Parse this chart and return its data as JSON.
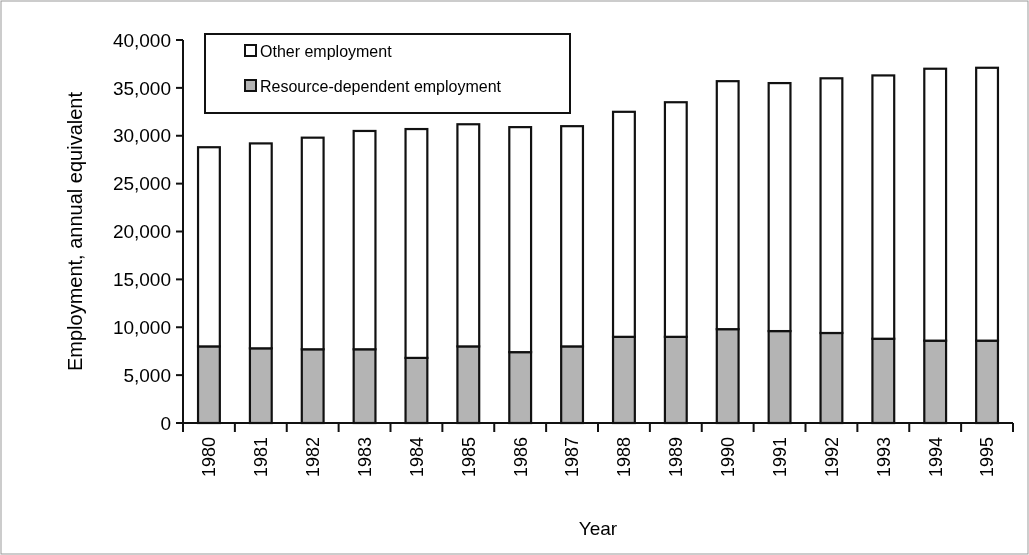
{
  "chart_data": {
    "type": "bar",
    "stacked": true,
    "xlabel": "Year",
    "ylabel": "Employment, annual equivalent",
    "categories": [
      "1980",
      "1981",
      "1982",
      "1983",
      "1984",
      "1985",
      "1986",
      "1987",
      "1988",
      "1989",
      "1990",
      "1991",
      "1992",
      "1993",
      "1994",
      "1995"
    ],
    "series": [
      {
        "name": "Resource-dependent employment",
        "color": "#b4b4b4",
        "values": [
          8000,
          7800,
          7700,
          7700,
          6800,
          8000,
          7400,
          8000,
          9000,
          9000,
          9800,
          9600,
          9400,
          8800,
          8600,
          8600
        ]
      },
      {
        "name": "Other employment",
        "color": "#ffffff",
        "values": [
          20800,
          21400,
          22100,
          22800,
          23900,
          23200,
          23500,
          23000,
          23500,
          24500,
          25900,
          25900,
          26600,
          27500,
          28400,
          28500
        ]
      }
    ],
    "ylim": [
      0,
      40000
    ],
    "yticks": [
      {
        "value": 0,
        "label": "0"
      },
      {
        "value": 5000,
        "label": "5,000"
      },
      {
        "value": 10000,
        "label": "10,000"
      },
      {
        "value": 15000,
        "label": "15,000"
      },
      {
        "value": 20000,
        "label": "20,000"
      },
      {
        "value": 25000,
        "label": "25,000"
      },
      {
        "value": 30000,
        "label": "30,000"
      },
      {
        "value": 35000,
        "label": "35,000"
      },
      {
        "value": 40000,
        "label": "40,000"
      }
    ],
    "legend": "top left",
    "grid": false
  }
}
